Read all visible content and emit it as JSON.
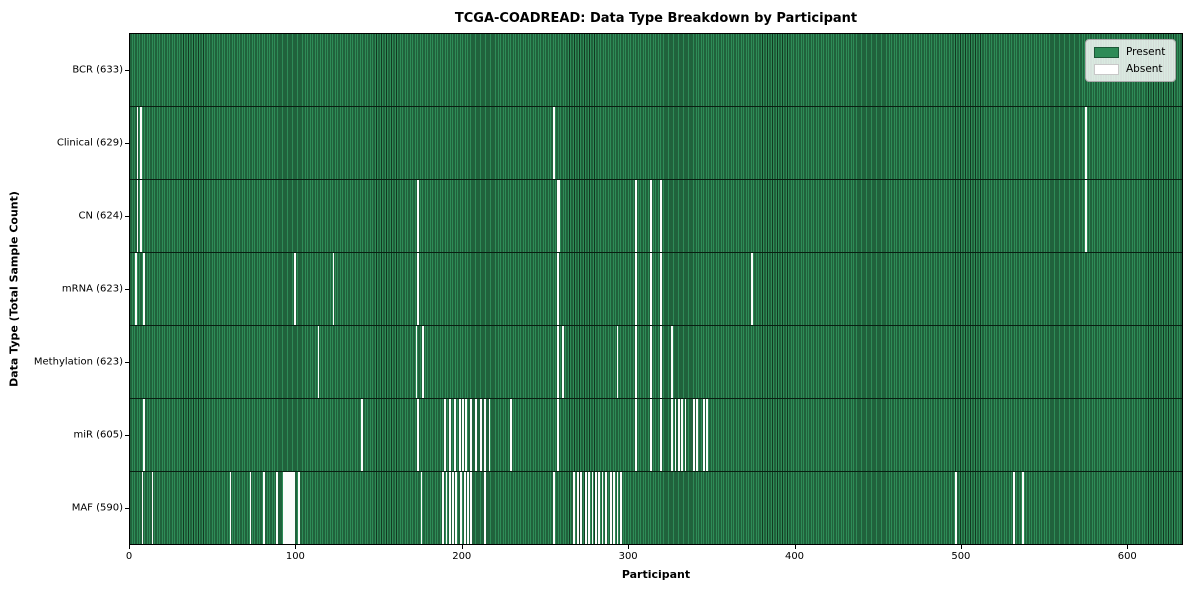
{
  "title": "TCGA-COADREAD: Data Type Breakdown by Participant",
  "legend": {
    "present_label": "Present",
    "absent_label": "Absent"
  },
  "axes": {
    "xlabel": "Participant",
    "ylabel": "Data Type (Total Sample Count)"
  },
  "colors": {
    "present_fill": "#2e8b57",
    "present_edge": "#123a22",
    "absent_fill": "#fcfcfc",
    "legend_background": "#e8ece8",
    "plot_border": "#000000"
  },
  "chart_data": {
    "type": "heatmap",
    "title": "TCGA-COADREAD: Data Type Breakdown by Participant",
    "xlabel": "Participant",
    "ylabel": "Data Type (Total Sample Count)",
    "legend_entries": [
      "Present",
      "Absent"
    ],
    "legend_position": "upper right",
    "grid": false,
    "x_ticks": [
      0,
      100,
      200,
      300,
      400,
      500,
      600
    ],
    "x_axis_max": 633.5,
    "total_participants": 633,
    "rows": [
      {
        "label": "BCR (633)",
        "data_type": "BCR",
        "present_count": 633,
        "absent_count": 0,
        "absent_participants": []
      },
      {
        "label": "Clinical (629)",
        "data_type": "Clinical",
        "present_count": 629,
        "absent_count": 4,
        "absent_participants": [
          4,
          6,
          255,
          575
        ]
      },
      {
        "label": "CN (624)",
        "data_type": "CN",
        "present_count": 624,
        "absent_count": 9,
        "absent_participants": [
          4,
          6,
          173,
          257,
          258,
          304,
          313,
          319,
          575
        ]
      },
      {
        "label": "mRNA (623)",
        "data_type": "mRNA",
        "present_count": 623,
        "absent_count": 10,
        "absent_participants": [
          3,
          8,
          99,
          122,
          173,
          257,
          304,
          313,
          319,
          374
        ]
      },
      {
        "label": "Methylation (623)",
        "data_type": "Methylation",
        "present_count": 623,
        "absent_count": 10,
        "absent_participants": [
          113,
          172,
          176,
          257,
          260,
          293,
          304,
          313,
          319,
          326
        ]
      },
      {
        "label": "miR (605)",
        "data_type": "miR",
        "present_count": 605,
        "absent_count": 28,
        "absent_participants": [
          8,
          139,
          173,
          189,
          192,
          195,
          198,
          200,
          202,
          205,
          208,
          211,
          213,
          216,
          229,
          257,
          304,
          313,
          319,
          326,
          328,
          330,
          332,
          334,
          339,
          341,
          345,
          347
        ]
      },
      {
        "label": "MAF (590)",
        "data_type": "MAF",
        "present_count": 590,
        "absent_count": 43,
        "absent_participants": [
          7,
          13,
          60,
          72,
          80,
          88,
          92,
          93,
          94,
          95,
          96,
          97,
          98,
          101,
          175,
          188,
          190,
          192,
          194,
          196,
          199,
          201,
          203,
          205,
          213,
          255,
          267,
          269,
          271,
          274,
          276,
          278,
          280,
          282,
          284,
          286,
          289,
          291,
          293,
          295,
          497,
          532,
          537
        ]
      }
    ]
  }
}
